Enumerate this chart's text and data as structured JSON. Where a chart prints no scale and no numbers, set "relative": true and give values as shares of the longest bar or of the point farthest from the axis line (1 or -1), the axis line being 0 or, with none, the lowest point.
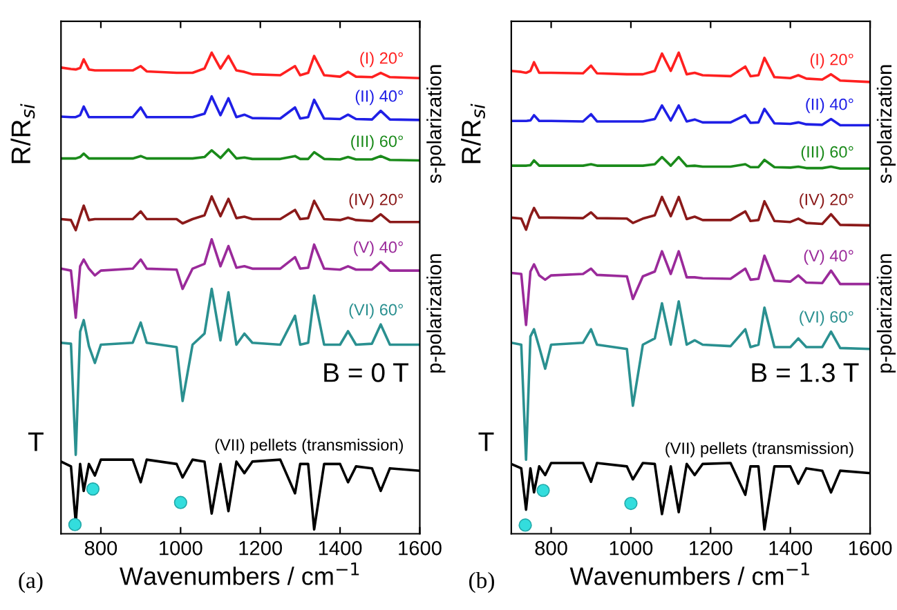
{
  "chart_data": [
    {
      "type": "line",
      "relative": true,
      "xlabel": "Wavenumbers / cm$^{−1}$",
      "ylabel": "R/R$_{si}$",
      "xlim": [
        700,
        1600
      ],
      "xticks": [
        800,
        1000,
        1200,
        1400,
        1600
      ],
      "grid": false,
      "legend": false,
      "marker": "none",
      "line_style": "solid",
      "x": [
        700,
        725,
        737,
        748,
        757,
        770,
        785,
        800,
        880,
        900,
        915,
        990,
        1005,
        1030,
        1060,
        1078,
        1100,
        1120,
        1140,
        1160,
        1180,
        1250,
        1287,
        1300,
        1320,
        1335,
        1360,
        1400,
        1420,
        1440,
        1480,
        1502,
        1525,
        1600
      ],
      "annotations": [
        "s-polarization",
        "p-polarization",
        "B = 0 T",
        "T",
        "(a)"
      ],
      "series": [
        {
          "name": "(I) 20°",
          "color": "#ff2020",
          "values": [
            0.969,
            0.966,
            0.965,
            0.968,
            0.986,
            0.965,
            0.963,
            0.963,
            0.963,
            0.972,
            0.961,
            0.958,
            0.958,
            0.958,
            0.967,
            1.0,
            0.967,
            0.993,
            0.963,
            0.96,
            0.955,
            0.953,
            0.972,
            0.953,
            0.958,
            0.993,
            0.953,
            0.95,
            0.96,
            0.95,
            0.949,
            0.958,
            0.949,
            0.947
          ]
        },
        {
          "name": "(II) 40°",
          "color": "#1f1fe6",
          "values": [
            0.867,
            0.866,
            0.866,
            0.87,
            0.888,
            0.866,
            0.866,
            0.866,
            0.866,
            0.886,
            0.866,
            0.866,
            0.866,
            0.866,
            0.873,
            0.909,
            0.87,
            0.905,
            0.866,
            0.871,
            0.864,
            0.863,
            0.886,
            0.863,
            0.866,
            0.902,
            0.863,
            0.862,
            0.871,
            0.862,
            0.861,
            0.879,
            0.861,
            0.86
          ]
        },
        {
          "name": "(III) 60°",
          "color": "#1a8a1a",
          "values": [
            0.78,
            0.78,
            0.78,
            0.783,
            0.79,
            0.78,
            0.78,
            0.78,
            0.78,
            0.785,
            0.78,
            0.78,
            0.78,
            0.78,
            0.783,
            0.797,
            0.781,
            0.799,
            0.78,
            0.782,
            0.779,
            0.779,
            0.785,
            0.779,
            0.779,
            0.793,
            0.779,
            0.778,
            0.783,
            0.778,
            0.778,
            0.785,
            0.777,
            0.776
          ]
        },
        {
          "name": "(IV) 20°",
          "color": "#8b1a1a",
          "values": [
            0.654,
            0.652,
            0.631,
            0.66,
            0.682,
            0.652,
            0.654,
            0.654,
            0.654,
            0.67,
            0.654,
            0.654,
            0.645,
            0.654,
            0.662,
            0.701,
            0.66,
            0.696,
            0.656,
            0.659,
            0.654,
            0.654,
            0.673,
            0.654,
            0.656,
            0.692,
            0.654,
            0.652,
            0.657,
            0.652,
            0.65,
            0.664,
            0.648,
            0.648
          ]
        },
        {
          "name": "(V) 40°",
          "color": "#9a2a9a",
          "values": [
            0.551,
            0.547,
            0.449,
            0.556,
            0.57,
            0.551,
            0.537,
            0.547,
            0.551,
            0.57,
            0.551,
            0.549,
            0.509,
            0.551,
            0.561,
            0.612,
            0.556,
            0.598,
            0.553,
            0.556,
            0.551,
            0.551,
            0.575,
            0.551,
            0.553,
            0.601,
            0.551,
            0.549,
            0.556,
            0.549,
            0.549,
            0.565,
            0.547,
            0.547
          ]
        },
        {
          "name": "(VI) 60°",
          "color": "#2a9090",
          "values": [
            0.397,
            0.395,
            0.164,
            0.42,
            0.444,
            0.39,
            0.355,
            0.393,
            0.397,
            0.439,
            0.397,
            0.388,
            0.276,
            0.393,
            0.416,
            0.509,
            0.402,
            0.502,
            0.393,
            0.416,
            0.397,
            0.393,
            0.453,
            0.393,
            0.397,
            0.495,
            0.393,
            0.393,
            0.421,
            0.393,
            0.395,
            0.435,
            0.393,
            0.393
          ]
        },
        {
          "name": "(VII) pellets (transmission)",
          "color": "#000000",
          "values": [
            0.15,
            0.14,
            0.023,
            0.145,
            0.089,
            0.145,
            0.121,
            0.154,
            0.154,
            0.107,
            0.154,
            0.145,
            0.117,
            0.154,
            0.15,
            0.042,
            0.145,
            0.047,
            0.15,
            0.126,
            0.15,
            0.154,
            0.084,
            0.145,
            0.145,
            0.009,
            0.145,
            0.145,
            0.107,
            0.14,
            0.136,
            0.089,
            0.136,
            0.131
          ]
        },
        {
          "type": "scatter",
          "color": "#33dddd",
          "marker": "circle",
          "x": [
            735,
            780,
            1000
          ],
          "values": [
            0.019,
            0.093,
            0.065
          ]
        }
      ]
    },
    {
      "type": "line",
      "relative": true,
      "xlabel": "Wavenumbers / cm$^{−1}$",
      "ylabel": "R/R$_{si}$",
      "xlim": [
        700,
        1600
      ],
      "xticks": [
        800,
        1000,
        1200,
        1400,
        1600
      ],
      "grid": false,
      "legend": false,
      "marker": "none",
      "line_style": "solid",
      "x": [
        700,
        725,
        737,
        748,
        757,
        770,
        785,
        800,
        880,
        900,
        915,
        990,
        1005,
        1030,
        1060,
        1078,
        1100,
        1120,
        1140,
        1160,
        1180,
        1250,
        1287,
        1300,
        1320,
        1335,
        1360,
        1400,
        1420,
        1440,
        1480,
        1502,
        1525,
        1600
      ],
      "annotations": [
        "s-polarization",
        "p-polarization",
        "B = 1.3 T",
        "T",
        "(b)"
      ],
      "series": [
        {
          "name": "(I) 20°",
          "color": "#ff2020",
          "values": [
            0.962,
            0.96,
            0.958,
            0.962,
            0.98,
            0.958,
            0.958,
            0.958,
            0.957,
            0.973,
            0.957,
            0.955,
            0.955,
            0.955,
            0.962,
            0.998,
            0.962,
            1.0,
            0.955,
            0.958,
            0.953,
            0.951,
            0.971,
            0.951,
            0.953,
            0.989,
            0.949,
            0.947,
            0.953,
            0.946,
            0.944,
            0.955,
            0.942,
            0.939
          ]
        },
        {
          "name": "(II) 40°",
          "color": "#1f1fe6",
          "values": [
            0.858,
            0.858,
            0.858,
            0.859,
            0.87,
            0.858,
            0.858,
            0.858,
            0.857,
            0.872,
            0.857,
            0.857,
            0.857,
            0.857,
            0.862,
            0.89,
            0.859,
            0.89,
            0.857,
            0.861,
            0.855,
            0.855,
            0.87,
            0.854,
            0.855,
            0.883,
            0.853,
            0.852,
            0.855,
            0.851,
            0.85,
            0.862,
            0.849,
            0.849
          ]
        },
        {
          "name": "(III) 60°",
          "color": "#1a8a1a",
          "values": [
            0.765,
            0.765,
            0.765,
            0.766,
            0.776,
            0.765,
            0.765,
            0.765,
            0.765,
            0.768,
            0.765,
            0.765,
            0.765,
            0.765,
            0.768,
            0.783,
            0.765,
            0.783,
            0.764,
            0.765,
            0.763,
            0.763,
            0.768,
            0.762,
            0.762,
            0.777,
            0.762,
            0.761,
            0.763,
            0.76,
            0.76,
            0.763,
            0.759,
            0.759
          ]
        },
        {
          "name": "(IV) 20°",
          "color": "#8b1a1a",
          "values": [
            0.657,
            0.655,
            0.632,
            0.66,
            0.677,
            0.657,
            0.657,
            0.657,
            0.656,
            0.668,
            0.656,
            0.655,
            0.646,
            0.655,
            0.662,
            0.7,
            0.66,
            0.7,
            0.654,
            0.659,
            0.652,
            0.652,
            0.67,
            0.65,
            0.652,
            0.691,
            0.65,
            0.648,
            0.655,
            0.646,
            0.644,
            0.664,
            0.642,
            0.641
          ]
        },
        {
          "name": "(V) 40°",
          "color": "#9a2a9a",
          "values": [
            0.542,
            0.54,
            0.434,
            0.545,
            0.56,
            0.537,
            0.528,
            0.537,
            0.54,
            0.551,
            0.538,
            0.535,
            0.488,
            0.535,
            0.545,
            0.587,
            0.54,
            0.587,
            0.533,
            0.533,
            0.531,
            0.53,
            0.551,
            0.528,
            0.53,
            0.578,
            0.526,
            0.524,
            0.537,
            0.522,
            0.521,
            0.547,
            0.519,
            0.519
          ]
        },
        {
          "name": "(VI) 60°",
          "color": "#2a9090",
          "values": [
            0.397,
            0.393,
            0.154,
            0.41,
            0.425,
            0.388,
            0.343,
            0.393,
            0.397,
            0.425,
            0.393,
            0.384,
            0.266,
            0.393,
            0.406,
            0.479,
            0.393,
            0.483,
            0.393,
            0.402,
            0.393,
            0.39,
            0.425,
            0.388,
            0.393,
            0.47,
            0.388,
            0.388,
            0.406,
            0.388,
            0.388,
            0.42,
            0.386,
            0.384
          ]
        },
        {
          "name": "(VII) pellets (transmission)",
          "color": "#000000",
          "values": [
            0.145,
            0.136,
            0.05,
            0.136,
            0.086,
            0.14,
            0.122,
            0.147,
            0.147,
            0.108,
            0.147,
            0.14,
            0.113,
            0.147,
            0.145,
            0.041,
            0.14,
            0.045,
            0.145,
            0.122,
            0.145,
            0.147,
            0.081,
            0.14,
            0.14,
            0.009,
            0.14,
            0.14,
            0.104,
            0.136,
            0.131,
            0.086,
            0.131,
            0.126
          ]
        },
        {
          "type": "scatter",
          "color": "#33dddd",
          "marker": "circle",
          "x": [
            735,
            780,
            1000
          ],
          "values": [
            0.018,
            0.09,
            0.063
          ]
        }
      ]
    }
  ]
}
